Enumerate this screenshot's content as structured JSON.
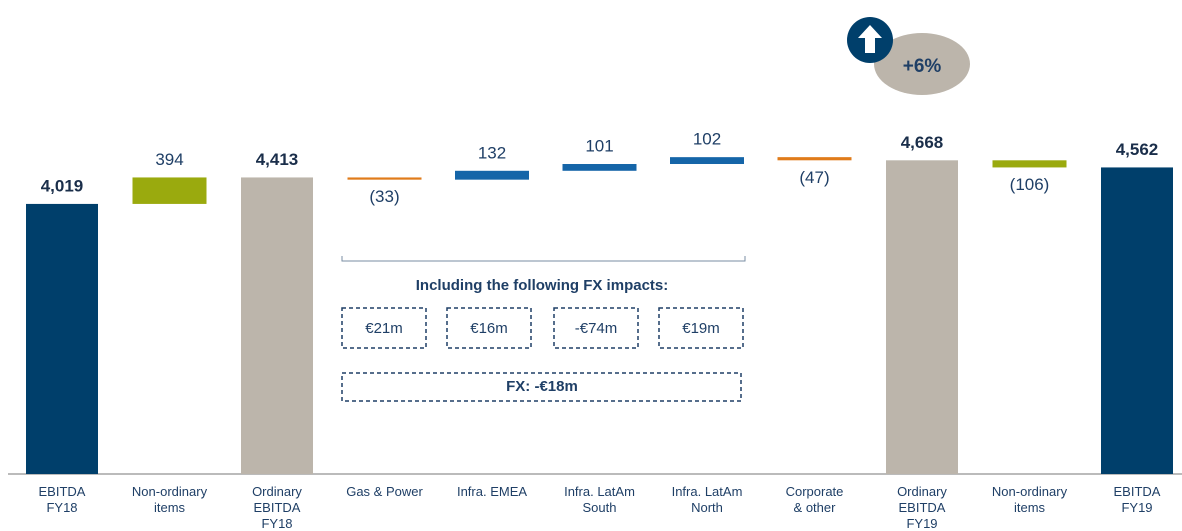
{
  "chart_data": {
    "type": "waterfall",
    "categories": [
      "EBITDA\nFY18",
      "Non-ordinary\nitems",
      "Ordinary\nEBITDA\nFY18",
      "Gas & Power",
      "Infra. EMEA",
      "Infra. LatAm\nSouth",
      "Infra. LatAm\nNorth",
      "Corporate\n& other",
      "Ordinary\nEBITDA\nFY19",
      "Non-ordinary\nitems",
      "EBITDA\nFY19"
    ],
    "values": [
      4019,
      394,
      4413,
      -33,
      132,
      101,
      102,
      -47,
      4668,
      -106,
      4562
    ],
    "value_labels": [
      "4,019",
      "394",
      "4,413",
      "(33)",
      "132",
      "101",
      "102",
      "(47)",
      "4,668",
      "(106)",
      "4,562"
    ],
    "measures": [
      "absolute",
      "relative",
      "absolute",
      "relative",
      "relative",
      "relative",
      "relative",
      "relative",
      "absolute",
      "relative",
      "absolute"
    ],
    "colors": [
      "#003f6b",
      "#9aaa0e",
      "#bcb5ab",
      "#e07b1a",
      "#1565a8",
      "#1565a8",
      "#1565a8",
      "#e07b1a",
      "#bcb5ab",
      "#9aaa0e",
      "#003f6b"
    ],
    "ylim": [
      0,
      5000
    ],
    "growth_label": "+6%",
    "fx_title": "Including the following FX impacts:",
    "fx_impacts": [
      "€21m",
      "€16m",
      "-€74m",
      "€19m"
    ],
    "fx_total": "FX: -€18m"
  }
}
